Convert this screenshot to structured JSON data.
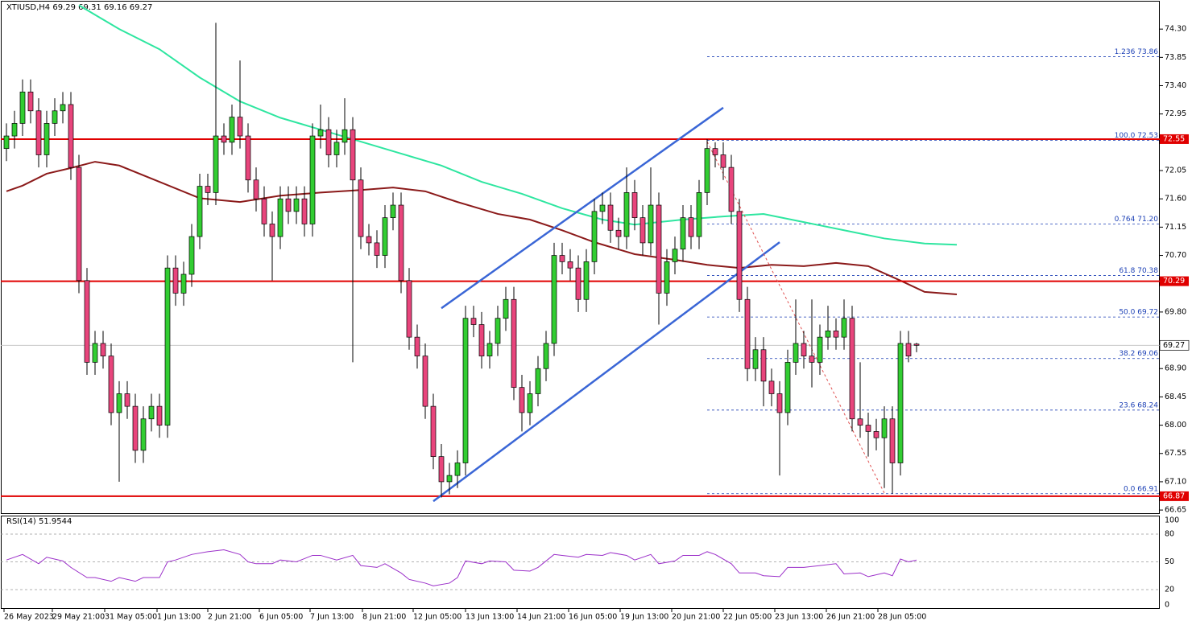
{
  "chart_data": {
    "type": "candlestick",
    "title": "XTIUSD,H4  69.29 69.31 69.16 69.27",
    "up_color": "#32cd32",
    "down_color": "#e8457c",
    "open": [
      72.4,
      72.6,
      72.8,
      73.3,
      73.0,
      72.3,
      72.8,
      73.0,
      73.1,
      72.1,
      70.3,
      69.0,
      69.3,
      69.1,
      68.2,
      68.5,
      68.3,
      67.6,
      68.1,
      68.3,
      68.0,
      70.5,
      70.1,
      70.4,
      71.0,
      71.8,
      71.7,
      72.6,
      72.5,
      72.9,
      72.6,
      71.9,
      71.6,
      71.2,
      71.0,
      71.6,
      71.4,
      71.6,
      71.2,
      72.6,
      72.7,
      72.3,
      72.5,
      72.7,
      71.9,
      71.0,
      70.9,
      70.7,
      71.3,
      71.5,
      70.3,
      69.4,
      69.1,
      68.3,
      67.5,
      67.1,
      67.2,
      67.4,
      69.7,
      69.6,
      69.1,
      69.3,
      69.7,
      70.0,
      68.6,
      68.2,
      68.5,
      68.9,
      69.3,
      70.7,
      70.6,
      70.5,
      70.0,
      70.6,
      71.4,
      71.5,
      71.1,
      71.0,
      71.7,
      71.3,
      70.9,
      71.5,
      70.1,
      70.6,
      70.8,
      71.3,
      71.0,
      71.7,
      72.4,
      72.3,
      72.1,
      71.4,
      70.0,
      68.9,
      69.2,
      68.7,
      68.5,
      68.2,
      69.0,
      69.3,
      69.1,
      69.0,
      69.4,
      69.5,
      69.4,
      69.7,
      68.1,
      68.0,
      67.9,
      67.8,
      68.1,
      67.4,
      69.3,
      69.29
    ],
    "high": [
      72.8,
      73.0,
      73.5,
      73.5,
      73.2,
      73.0,
      73.2,
      73.3,
      73.3,
      72.3,
      70.5,
      69.5,
      69.5,
      69.3,
      68.7,
      68.7,
      68.5,
      68.3,
      68.5,
      68.5,
      70.7,
      70.7,
      70.6,
      71.2,
      72.0,
      72.0,
      74.4,
      72.8,
      73.1,
      73.8,
      72.8,
      72.1,
      71.8,
      71.4,
      71.8,
      71.8,
      71.8,
      71.8,
      72.8,
      73.1,
      72.9,
      72.7,
      73.2,
      72.9,
      72.1,
      71.2,
      71.1,
      71.5,
      71.7,
      71.7,
      70.5,
      69.6,
      69.3,
      68.5,
      67.7,
      67.4,
      67.6,
      69.9,
      69.9,
      69.8,
      69.5,
      69.9,
      70.2,
      70.2,
      68.8,
      68.7,
      69.1,
      69.5,
      70.9,
      70.9,
      70.8,
      70.7,
      70.8,
      71.6,
      71.7,
      71.7,
      71.3,
      72.1,
      71.9,
      71.5,
      72.1,
      71.7,
      70.8,
      71.0,
      71.5,
      71.5,
      71.9,
      72.55,
      72.5,
      72.5,
      72.3,
      71.6,
      70.2,
      69.4,
      69.4,
      68.9,
      68.7,
      69.2,
      70.0,
      69.5,
      70.0,
      69.6,
      69.9,
      69.7,
      70.0,
      69.9,
      69.0,
      68.2,
      68.1,
      68.3,
      68.3,
      69.5,
      69.5,
      69.31
    ],
    "low": [
      72.2,
      72.4,
      72.6,
      72.8,
      72.1,
      72.1,
      72.6,
      72.8,
      71.9,
      70.1,
      68.8,
      68.8,
      68.9,
      68.0,
      67.1,
      68.1,
      67.4,
      67.4,
      67.9,
      67.8,
      67.8,
      69.9,
      69.9,
      70.2,
      70.8,
      71.5,
      71.5,
      72.3,
      72.3,
      72.4,
      71.7,
      71.4,
      71.0,
      70.3,
      70.8,
      71.2,
      71.2,
      71.0,
      71.0,
      72.4,
      72.1,
      72.1,
      72.3,
      69.0,
      70.8,
      70.7,
      70.5,
      70.5,
      71.1,
      70.1,
      69.2,
      68.9,
      68.1,
      67.3,
      66.85,
      66.9,
      67.0,
      67.2,
      69.4,
      68.9,
      68.9,
      69.1,
      69.5,
      68.4,
      67.9,
      68.0,
      68.3,
      68.7,
      69.1,
      70.4,
      70.3,
      69.8,
      69.8,
      70.4,
      71.2,
      70.9,
      70.8,
      70.8,
      71.1,
      70.7,
      70.7,
      69.6,
      69.9,
      70.4,
      70.6,
      70.8,
      70.8,
      71.5,
      72.1,
      71.9,
      71.2,
      69.8,
      68.7,
      68.7,
      68.3,
      68.3,
      67.2,
      68.0,
      68.8,
      68.9,
      68.6,
      68.8,
      69.2,
      69.2,
      69.2,
      67.9,
      67.8,
      67.5,
      67.6,
      67.0,
      66.91,
      67.2,
      69.0,
      69.16
    ],
    "close": [
      72.6,
      72.8,
      73.3,
      73.0,
      72.3,
      72.8,
      73.0,
      73.1,
      72.1,
      70.3,
      69.0,
      69.3,
      69.1,
      68.2,
      68.5,
      68.3,
      67.6,
      68.1,
      68.3,
      68.0,
      70.5,
      70.1,
      70.4,
      71.0,
      71.8,
      71.7,
      72.6,
      72.5,
      72.9,
      72.6,
      71.9,
      71.6,
      71.2,
      71.0,
      71.6,
      71.4,
      71.6,
      71.2,
      72.6,
      72.7,
      72.3,
      72.5,
      72.7,
      71.9,
      71.0,
      70.9,
      70.7,
      71.3,
      71.5,
      70.3,
      69.4,
      69.1,
      68.3,
      67.5,
      67.1,
      67.2,
      67.4,
      69.7,
      69.6,
      69.1,
      69.3,
      69.7,
      70.0,
      68.6,
      68.2,
      68.5,
      68.9,
      69.3,
      70.7,
      70.6,
      70.5,
      70.0,
      70.6,
      71.4,
      71.5,
      71.1,
      71.0,
      71.7,
      71.3,
      70.9,
      71.5,
      70.1,
      70.6,
      70.8,
      71.3,
      71.0,
      71.7,
      72.4,
      72.3,
      72.1,
      71.4,
      70.0,
      68.9,
      69.2,
      68.7,
      68.5,
      68.2,
      69.0,
      69.3,
      69.1,
      69.0,
      69.4,
      69.5,
      69.4,
      69.7,
      68.1,
      68.0,
      67.9,
      67.8,
      68.1,
      67.4,
      69.3,
      69.1,
      69.27
    ],
    "ylim": [
      66.6,
      74.75
    ],
    "yticks": [
      {
        "value": 74.3,
        "label": "74.30"
      },
      {
        "value": 73.85,
        "label": "73.85"
      },
      {
        "value": 73.4,
        "label": "73.40"
      },
      {
        "value": 72.95,
        "label": "72.95"
      },
      {
        "value": 72.05,
        "label": "72.05"
      },
      {
        "value": 71.6,
        "label": "71.60"
      },
      {
        "value": 71.15,
        "label": "71.15"
      },
      {
        "value": 70.7,
        "label": "70.70"
      },
      {
        "value": 69.8,
        "label": "69.80"
      },
      {
        "value": 68.9,
        "label": "68.90"
      },
      {
        "value": 68.45,
        "label": "68.45"
      },
      {
        "value": 68.0,
        "label": "68.00"
      },
      {
        "value": 67.55,
        "label": "67.55"
      },
      {
        "value": 67.1,
        "label": "67.10"
      },
      {
        "value": 66.65,
        "label": "66.65"
      }
    ],
    "xticks": [
      {
        "value": -0.3,
        "label": "26 May 2023"
      },
      {
        "value": 5.7,
        "label": "29 May 21:00"
      },
      {
        "value": 12.2,
        "label": "31 May 05:00"
      },
      {
        "value": 18.7,
        "label": "1 Jun 13:00"
      },
      {
        "value": 25,
        "label": "2 Jun 21:00"
      },
      {
        "value": 31.4,
        "label": "6 Jun 05:00"
      },
      {
        "value": 37.7,
        "label": "7 Jun 13:00"
      },
      {
        "value": 44.2,
        "label": "8 Jun 21:00"
      },
      {
        "value": 50.5,
        "label": "12 Jun 05:00"
      },
      {
        "value": 57,
        "label": "13 Jun 13:00"
      },
      {
        "value": 63.4,
        "label": "14 Jun 21:00"
      },
      {
        "value": 69.8,
        "label": "16 Jun 05:00"
      },
      {
        "value": 76.2,
        "label": "19 Jun 13:00"
      },
      {
        "value": 82.6,
        "label": "20 Jun 21:00"
      },
      {
        "value": 89,
        "label": "22 Jun 05:00"
      },
      {
        "value": 95.4,
        "label": "23 Jun 13:00"
      },
      {
        "value": 101.8,
        "label": "26 Jun 21:00"
      },
      {
        "value": 108.2,
        "label": "28 Jun 05:00"
      }
    ],
    "moving_averages": [
      {
        "color": "#8b1a1a",
        "x": [
          0,
          2,
          5,
          8,
          11,
          14,
          19,
          24,
          29,
          34,
          39,
          44,
          48,
          52,
          56,
          61,
          65,
          69,
          73,
          78,
          83,
          87,
          91,
          95,
          99,
          103,
          107,
          111,
          114,
          118
        ],
        "values": [
          71.72,
          71.81,
          72.0,
          72.09,
          72.19,
          72.13,
          71.87,
          71.61,
          71.55,
          71.65,
          71.7,
          71.74,
          71.78,
          71.72,
          71.55,
          71.36,
          71.27,
          71.1,
          70.91,
          70.72,
          70.63,
          70.55,
          70.5,
          70.55,
          70.53,
          70.58,
          70.53,
          70.3,
          70.12,
          70.08
        ]
      },
      {
        "color": "#2ee6a0",
        "x": [
          9,
          14,
          19,
          24,
          29,
          34,
          39,
          44,
          49,
          54,
          59,
          64,
          69,
          74,
          78,
          84,
          89,
          94,
          99,
          104,
          109,
          114,
          118
        ],
        "values": [
          74.68,
          74.3,
          73.98,
          73.53,
          73.15,
          72.89,
          72.7,
          72.51,
          72.32,
          72.13,
          71.87,
          71.68,
          71.45,
          71.27,
          71.19,
          71.27,
          71.32,
          71.36,
          71.23,
          71.1,
          70.97,
          70.89,
          70.87
        ]
      }
    ],
    "levels": [
      {
        "value": 72.55,
        "color": "#e00000"
      },
      {
        "value": 70.29,
        "color": "#e00000"
      },
      {
        "value": 66.87,
        "color": "#e00000"
      }
    ],
    "trendlines": [
      {
        "color": "#3a66d6",
        "x": [
          54,
          89
        ],
        "values": [
          69.86,
          73.05
        ]
      },
      {
        "color": "#3a66d6",
        "x": [
          53,
          96
        ],
        "values": [
          66.79,
          70.91
        ]
      },
      {
        "color": "#e05050",
        "x": [
          87,
          109
        ],
        "values": [
          72.51,
          66.92
        ]
      }
    ],
    "fib_start": 87,
    "fib": [
      {
        "label": "1.236 73.86",
        "value": 73.86
      },
      {
        "label": "100.0 72.53",
        "value": 72.53
      },
      {
        "label": "0.764 71.20",
        "value": 71.2
      },
      {
        "label": "61.8 70.38",
        "value": 70.38
      },
      {
        "label": "50.0 69.72",
        "value": 69.72
      },
      {
        "label": "38.2 69.06",
        "value": 69.06
      },
      {
        "label": "23.6 68.24",
        "value": 68.24
      },
      {
        "label": "0.0 66.91",
        "value": 66.91
      }
    ],
    "rsi": {
      "title": "RSI(14) 51.9544",
      "color": "#9b2fc9",
      "ylim": [
        0,
        100
      ],
      "yticks": [
        100,
        80,
        50,
        20,
        0
      ],
      "x": [
        0,
        2,
        4,
        5,
        7,
        8,
        10,
        11,
        13,
        14,
        16,
        17,
        19,
        20,
        21,
        23,
        25,
        27,
        29,
        30,
        31,
        33,
        34,
        36,
        38,
        39,
        41,
        43,
        44,
        46,
        47,
        49,
        50,
        52,
        53,
        55,
        56,
        57,
        59,
        60,
        62,
        63,
        65,
        66,
        68,
        69,
        71,
        72,
        74,
        75,
        77,
        78,
        80,
        81,
        83,
        84,
        86,
        87,
        88,
        90,
        91,
        93,
        94,
        96,
        97,
        99,
        101,
        103,
        104,
        106,
        107,
        109,
        110,
        111,
        112,
        113
      ],
      "values": [
        52,
        58,
        48,
        55,
        51,
        44,
        33,
        33,
        29,
        33,
        29,
        33,
        33,
        50,
        52,
        58,
        61,
        63,
        58,
        50,
        48,
        48,
        52,
        50,
        57,
        57,
        52,
        57,
        46,
        44,
        48,
        38,
        31,
        27,
        24,
        27,
        33,
        51,
        48,
        51,
        50,
        41,
        40,
        44,
        58,
        57,
        55,
        58,
        57,
        60,
        57,
        52,
        58,
        48,
        51,
        57,
        57,
        61,
        58,
        48,
        38,
        38,
        35,
        34,
        44,
        44,
        46,
        48,
        37,
        38,
        34,
        38,
        35,
        53,
        50,
        51.95
      ]
    }
  }
}
